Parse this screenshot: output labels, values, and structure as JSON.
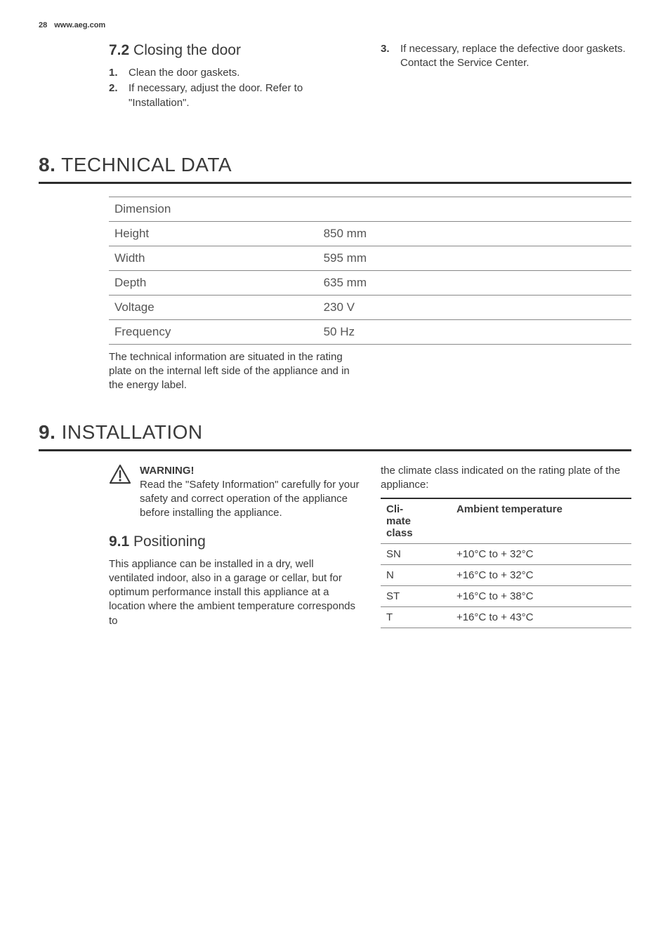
{
  "header": {
    "page_number": "28",
    "url": "www.aeg.com"
  },
  "section_7_2": {
    "title_num": "7.2",
    "title_text": "Closing the door",
    "left_items": [
      {
        "marker": "1.",
        "text": "Clean the door gaskets."
      },
      {
        "marker": "2.",
        "text": "If necessary, adjust the door. Refer to \"Installation\"."
      }
    ],
    "right_items": [
      {
        "marker": "3.",
        "text": "If necessary, replace the defective door gaskets. Contact the Service Center."
      }
    ]
  },
  "section_8": {
    "num": "8.",
    "title": "TECHNICAL DATA",
    "table": {
      "rows": [
        {
          "label": "Dimension",
          "sublabel": "",
          "value": ""
        },
        {
          "label": "",
          "sublabel": "Height",
          "value": "850 mm"
        },
        {
          "label": "",
          "sublabel": "Width",
          "value": "595 mm"
        },
        {
          "label": "",
          "sublabel": "Depth",
          "value": "635 mm"
        },
        {
          "label": "Voltage",
          "sublabel": "",
          "value": "230 V"
        },
        {
          "label": "Frequency",
          "sublabel": "",
          "value": "50 Hz"
        }
      ]
    },
    "note": "The technical information are situated in the rating plate on the internal left side of the appliance and in the energy label."
  },
  "section_9": {
    "num": "9.",
    "title": "INSTALLATION",
    "warning": {
      "title": "WARNING!",
      "text": "Read the \"Safety Information\" carefully for your safety and correct operation of the appliance before installing the appliance."
    },
    "sub_9_1": {
      "num": "9.1",
      "title": "Positioning",
      "para": "This appliance can be installed in a dry, well ventilated indoor, also in a garage or cellar, but for optimum performance install this appliance at a location where the ambient temperature corresponds to"
    },
    "right_intro": "the climate class indicated on the rating plate of the appliance:",
    "climate_table": {
      "header": {
        "col1": "Cli-mate class",
        "col2": "Ambient temperature"
      },
      "rows": [
        {
          "class": "SN",
          "temp": "+10°C to + 32°C"
        },
        {
          "class": "N",
          "temp": "+16°C to + 32°C"
        },
        {
          "class": "ST",
          "temp": "+16°C to + 38°C"
        },
        {
          "class": "T",
          "temp": "+16°C to + 43°C"
        }
      ]
    }
  },
  "colors": {
    "text": "#3a3a3a",
    "border_dark": "#2c2c2c",
    "border_light": "#888888",
    "background": "#ffffff"
  }
}
